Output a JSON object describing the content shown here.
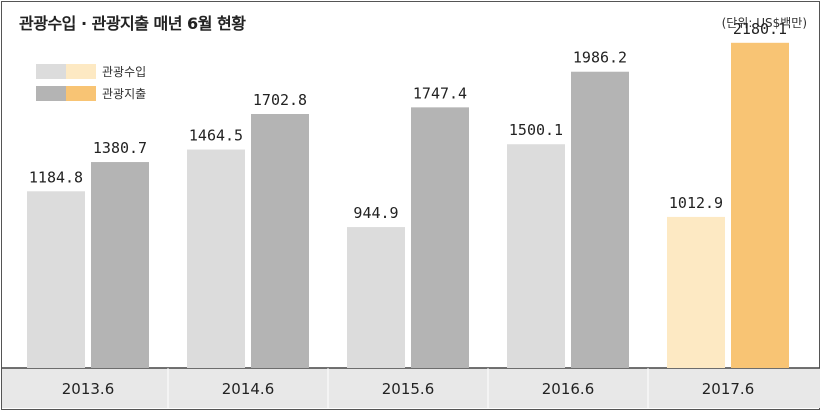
{
  "chart_data": {
    "type": "bar",
    "title": "관광수입 · 관광지출 매년 6월 현황",
    "unit_label": "(단위: US$백만)",
    "categories": [
      "2013.6",
      "2014.6",
      "2015.6",
      "2016.6",
      "2017.6"
    ],
    "series": [
      {
        "name": "관광수입",
        "values": [
          1184.8,
          1464.5,
          944.9,
          1500.1,
          1012.9
        ],
        "color": "#dcdcdc",
        "highlight_color": "#fde9c3"
      },
      {
        "name": "관광지출",
        "values": [
          1380.7,
          1702.8,
          1747.4,
          1986.2,
          2180.1
        ],
        "color": "#b4b4b4",
        "highlight_color": "#f8c474"
      }
    ],
    "highlight_category_index": 4,
    "ylim": [
      0,
      2400
    ],
    "grid": false,
    "legend_position": "top-left"
  }
}
